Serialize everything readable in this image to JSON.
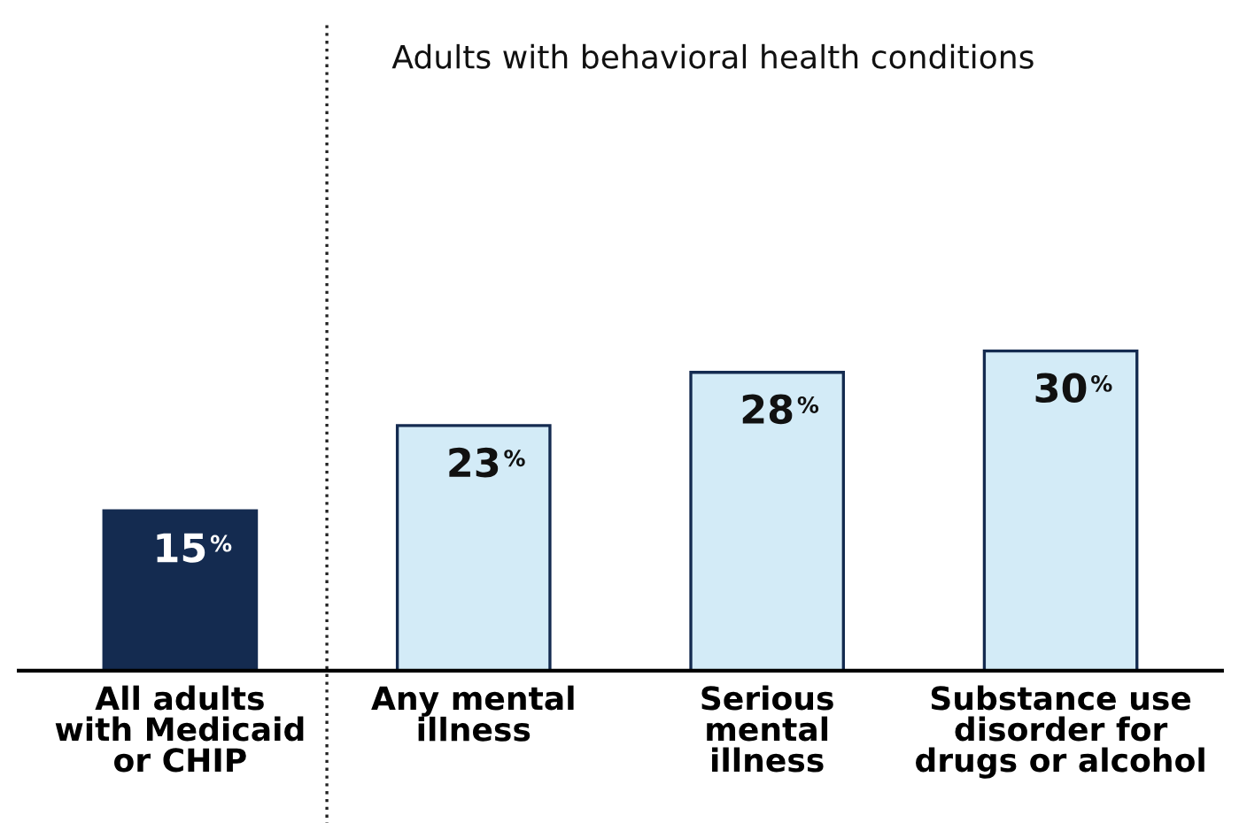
{
  "chart_data": {
    "type": "bar",
    "categories": [
      "All adults\nwith Medicaid\nor CHIP",
      "Any mental\nillness",
      "Serious\nmental\nillness",
      "Substance use\ndisorder for\ndrugs or alcohol"
    ],
    "values": [
      15,
      23,
      28,
      30
    ],
    "colors": [
      "#142b50",
      "#d3ebf7",
      "#d3ebf7",
      "#d3ebf7"
    ],
    "value_labels": [
      "15$^{%}$",
      "23$^{%}$",
      "28$^{%}$",
      "30$^{%}$"
    ],
    "ylim": [
      0,
      61
    ],
    "tick_labels": "x",
    "grid": false,
    "annotations": [
      "Adults with behavioral health conditions"
    ]
  }
}
